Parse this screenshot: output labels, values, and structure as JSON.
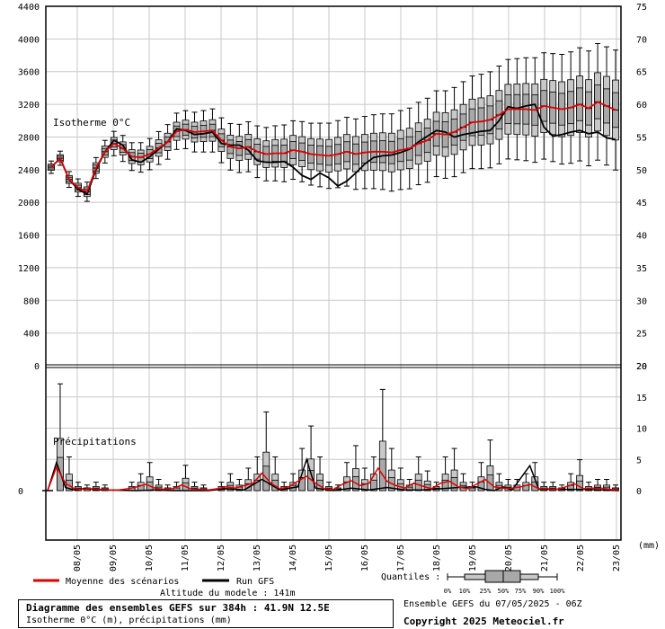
{
  "chart_data": [
    {
      "type": "box",
      "label": "Isotherme 0°C",
      "left_axis": {
        "min": 0,
        "max": 4400,
        "ticks": [
          0,
          400,
          800,
          1200,
          1600,
          2000,
          2400,
          2800,
          3200,
          3600,
          4000,
          4400
        ]
      },
      "right_axis": {
        "ticks": [
          20,
          25,
          30,
          35,
          40,
          45,
          50,
          55,
          60,
          65,
          70,
          75
        ]
      },
      "x_ticks": [
        "08/05",
        "09/05",
        "10/05",
        "11/05",
        "12/05",
        "13/05",
        "14/05",
        "15/05",
        "16/05",
        "17/05",
        "18/05",
        "19/05",
        "20/05",
        "21/05",
        "22/05",
        "23/05"
      ],
      "n_steps": 64,
      "first_day_step": 3,
      "series": [
        {
          "name": "Moyenne des scénarios",
          "color": "#e00000",
          "knots": [
            [
              0,
              2430
            ],
            [
              1,
              2540
            ],
            [
              2,
              2280
            ],
            [
              3,
              2180
            ],
            [
              4,
              2130
            ],
            [
              5,
              2420
            ],
            [
              6,
              2620
            ],
            [
              7,
              2720
            ],
            [
              8,
              2660
            ],
            [
              9,
              2560
            ],
            [
              10,
              2550
            ],
            [
              11,
              2590
            ],
            [
              13,
              2740
            ],
            [
              14,
              2870
            ],
            [
              15,
              2890
            ],
            [
              16,
              2860
            ],
            [
              17,
              2870
            ],
            [
              18,
              2880
            ],
            [
              19,
              2760
            ],
            [
              20,
              2680
            ],
            [
              21,
              2660
            ],
            [
              22,
              2680
            ],
            [
              23,
              2620
            ],
            [
              24,
              2590
            ],
            [
              25,
              2600
            ],
            [
              26,
              2600
            ],
            [
              27,
              2640
            ],
            [
              28,
              2620
            ],
            [
              29,
              2590
            ],
            [
              30,
              2580
            ],
            [
              31,
              2570
            ],
            [
              32,
              2590
            ],
            [
              33,
              2620
            ],
            [
              34,
              2590
            ],
            [
              35,
              2610
            ],
            [
              36,
              2620
            ],
            [
              37,
              2620
            ],
            [
              38,
              2610
            ],
            [
              39,
              2640
            ],
            [
              40,
              2660
            ],
            [
              41,
              2720
            ],
            [
              42,
              2760
            ],
            [
              43,
              2840
            ],
            [
              44,
              2830
            ],
            [
              45,
              2860
            ],
            [
              46,
              2920
            ],
            [
              47,
              2980
            ],
            [
              48,
              2990
            ],
            [
              49,
              3010
            ],
            [
              50,
              3070
            ],
            [
              51,
              3140
            ],
            [
              52,
              3140
            ],
            [
              53,
              3140
            ],
            [
              54,
              3130
            ],
            [
              55,
              3180
            ],
            [
              56,
              3160
            ],
            [
              57,
              3140
            ],
            [
              58,
              3160
            ],
            [
              59,
              3200
            ],
            [
              60,
              3150
            ],
            [
              61,
              3230
            ],
            [
              62,
              3180
            ],
            [
              63,
              3130
            ]
          ]
        },
        {
          "name": "Run GFS",
          "color": "#000000",
          "knots": [
            [
              0,
              2430
            ],
            [
              1,
              2540
            ],
            [
              2,
              2280
            ],
            [
              3,
              2160
            ],
            [
              4,
              2100
            ],
            [
              5,
              2400
            ],
            [
              6,
              2620
            ],
            [
              7,
              2760
            ],
            [
              8,
              2700
            ],
            [
              9,
              2520
            ],
            [
              10,
              2490
            ],
            [
              11,
              2560
            ],
            [
              13,
              2740
            ],
            [
              14,
              2900
            ],
            [
              15,
              2880
            ],
            [
              16,
              2830
            ],
            [
              17,
              2840
            ],
            [
              18,
              2860
            ],
            [
              19,
              2720
            ],
            [
              20,
              2700
            ],
            [
              21,
              2700
            ],
            [
              22,
              2640
            ],
            [
              23,
              2510
            ],
            [
              24,
              2490
            ],
            [
              25,
              2490
            ],
            [
              26,
              2500
            ],
            [
              27,
              2430
            ],
            [
              28,
              2330
            ],
            [
              29,
              2280
            ],
            [
              30,
              2360
            ],
            [
              31,
              2300
            ],
            [
              32,
              2200
            ],
            [
              33,
              2260
            ],
            [
              34,
              2360
            ],
            [
              35,
              2470
            ],
            [
              36,
              2550
            ],
            [
              37,
              2570
            ],
            [
              38,
              2580
            ],
            [
              39,
              2610
            ],
            [
              40,
              2650
            ],
            [
              41,
              2740
            ],
            [
              42,
              2810
            ],
            [
              43,
              2880
            ],
            [
              44,
              2860
            ],
            [
              45,
              2800
            ],
            [
              46,
              2830
            ],
            [
              47,
              2850
            ],
            [
              48,
              2870
            ],
            [
              49,
              2880
            ],
            [
              50,
              3000
            ],
            [
              51,
              3170
            ],
            [
              52,
              3150
            ],
            [
              53,
              3180
            ],
            [
              54,
              3200
            ],
            [
              55,
              2920
            ],
            [
              56,
              2810
            ],
            [
              57,
              2830
            ],
            [
              58,
              2860
            ],
            [
              59,
              2880
            ],
            [
              60,
              2840
            ],
            [
              61,
              2860
            ],
            [
              62,
              2790
            ],
            [
              63,
              2770
            ]
          ]
        }
      ]
    },
    {
      "type": "box",
      "label": "Précipitations",
      "left_axis": {
        "ticks": [
          0
        ]
      },
      "right_axis": {
        "min": 0,
        "max": 20,
        "ticks": [
          0,
          5,
          10,
          15,
          20
        ],
        "unit": "(mm)"
      },
      "mean_knots": [
        [
          0,
          0
        ],
        [
          1,
          3.8
        ],
        [
          2,
          1.2
        ],
        [
          3,
          0.3
        ],
        [
          4,
          0.2
        ],
        [
          5,
          0.3
        ],
        [
          6,
          0.2
        ],
        [
          7,
          0.1
        ],
        [
          8,
          0.1
        ],
        [
          9,
          0.3
        ],
        [
          10,
          0.6
        ],
        [
          11,
          1.0
        ],
        [
          12,
          0.4
        ],
        [
          13,
          0.2
        ],
        [
          14,
          0.3
        ],
        [
          15,
          0.9
        ],
        [
          16,
          0.3
        ],
        [
          17,
          0.2
        ],
        [
          18,
          0.1
        ],
        [
          19,
          0.3
        ],
        [
          20,
          0.6
        ],
        [
          21,
          0.4
        ],
        [
          22,
          0.8
        ],
        [
          23,
          1.2
        ],
        [
          24,
          2.8
        ],
        [
          25,
          1.2
        ],
        [
          26,
          0.3
        ],
        [
          27,
          0.6
        ],
        [
          28,
          1.5
        ],
        [
          29,
          2.3
        ],
        [
          30,
          1.2
        ],
        [
          31,
          0.3
        ],
        [
          32,
          0.2
        ],
        [
          33,
          1.0
        ],
        [
          34,
          1.6
        ],
        [
          35,
          0.8
        ],
        [
          36,
          1.2
        ],
        [
          37,
          3.6
        ],
        [
          38,
          1.5
        ],
        [
          39,
          0.8
        ],
        [
          40,
          0.4
        ],
        [
          41,
          1.2
        ],
        [
          42,
          0.7
        ],
        [
          43,
          0.3
        ],
        [
          44,
          1.2
        ],
        [
          45,
          1.5
        ],
        [
          46,
          0.6
        ],
        [
          47,
          0.3
        ],
        [
          48,
          1.0
        ],
        [
          49,
          1.8
        ],
        [
          50,
          0.6
        ],
        [
          51,
          0.4
        ],
        [
          52,
          0.4
        ],
        [
          53,
          0.6
        ],
        [
          54,
          1.0
        ],
        [
          55,
          0.3
        ],
        [
          56,
          0.3
        ],
        [
          57,
          0.2
        ],
        [
          58,
          0.6
        ],
        [
          59,
          1.1
        ],
        [
          60,
          0.3
        ],
        [
          61,
          0.4
        ],
        [
          62,
          0.4
        ],
        [
          63,
          0.2
        ],
        [
          64,
          0.1
        ]
      ],
      "gfs_knots": [
        [
          0,
          0
        ],
        [
          1,
          4.5
        ],
        [
          2,
          0.5
        ],
        [
          3,
          0.1
        ],
        [
          4,
          0.3
        ],
        [
          5,
          0.2
        ],
        [
          6,
          0.1
        ],
        [
          10,
          0
        ],
        [
          12,
          0.1
        ],
        [
          14,
          0
        ],
        [
          18,
          0
        ],
        [
          20,
          0.3
        ],
        [
          22,
          0.1
        ],
        [
          24,
          1.8
        ],
        [
          26,
          0.1
        ],
        [
          28,
          0.6
        ],
        [
          29,
          5.0
        ],
        [
          30,
          0.4
        ],
        [
          32,
          0
        ],
        [
          34,
          0.4
        ],
        [
          36,
          0.1
        ],
        [
          38,
          0.5
        ],
        [
          40,
          0.1
        ],
        [
          42,
          0.1
        ],
        [
          44,
          0.3
        ],
        [
          46,
          0.5
        ],
        [
          48,
          0.6
        ],
        [
          49,
          0.2
        ],
        [
          50,
          0
        ],
        [
          51,
          0.6
        ],
        [
          52,
          0.1
        ],
        [
          54,
          4.0
        ],
        [
          55,
          0.2
        ],
        [
          58,
          0.2
        ],
        [
          60,
          0.2
        ],
        [
          62,
          0.1
        ],
        [
          64,
          0
        ]
      ]
    }
  ],
  "legend": {
    "mean_label": "Moyenne des scénarios",
    "gfs_label": "Run GFS",
    "altitude": "Altitude du modele : 141m",
    "quantiles_label": "Quantiles :",
    "quantile_steps": [
      "0%",
      "10%",
      "25%",
      "50%",
      "75%",
      "90%",
      "100%"
    ]
  },
  "info": {
    "title": "Diagramme des ensembles GEFS sur 384h : 41.9N 12.5E",
    "subtitle": "Isotherme 0°C (m), précipitations (mm)"
  },
  "run": "Ensemble GEFS du 07/05/2025 - 06Z",
  "copyright": "Copyright 2025 Meteociel.fr"
}
